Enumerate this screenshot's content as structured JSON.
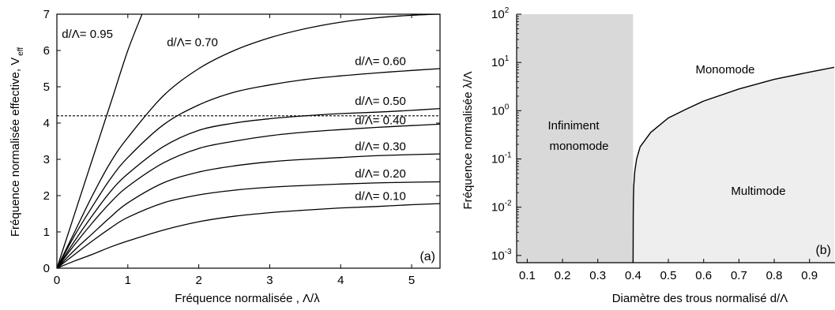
{
  "chart_data": [
    {
      "type": "line",
      "panel_label": "(a)",
      "xlabel": "Fréquence normalisée , Λ/λ",
      "ylabel_main": "Fréquence normalisée effective, V",
      "ylabel_sub": "eff",
      "xlim": [
        0,
        5.4
      ],
      "ylim": [
        0,
        7
      ],
      "xticks": [
        0,
        1,
        2,
        3,
        4,
        5
      ],
      "yticks": [
        0,
        1,
        2,
        3,
        4,
        5,
        6,
        7
      ],
      "hline": 4.2,
      "series": [
        {
          "name": "d/Λ= 0.95",
          "x": [
            0,
            0.2,
            0.4,
            0.6,
            0.8,
            1.0,
            1.2
          ],
          "y": [
            0,
            1.2,
            2.4,
            3.6,
            4.8,
            6.0,
            7.0
          ]
        },
        {
          "name": "d/Λ= 0.70",
          "x": [
            0,
            0.25,
            0.5,
            0.75,
            1.0,
            1.5,
            2.0,
            2.5,
            3.0,
            3.5,
            4.0,
            4.5,
            5.0,
            5.4
          ],
          "y": [
            0,
            1.0,
            2.0,
            2.9,
            3.6,
            4.75,
            5.5,
            6.0,
            6.35,
            6.6,
            6.78,
            6.9,
            6.97,
            7.0
          ]
        },
        {
          "name": "d/Λ= 0.60",
          "x": [
            0,
            0.25,
            0.5,
            0.75,
            1.0,
            1.5,
            2.0,
            2.5,
            3.0,
            3.5,
            4.0,
            4.5,
            5.0,
            5.4
          ],
          "y": [
            0,
            0.9,
            1.7,
            2.45,
            3.05,
            3.95,
            4.5,
            4.85,
            5.05,
            5.2,
            5.3,
            5.38,
            5.45,
            5.5
          ]
        },
        {
          "name": "d/Λ= 0.50",
          "x": [
            0,
            0.25,
            0.5,
            0.75,
            1.0,
            1.5,
            2.0,
            2.5,
            3.0,
            3.5,
            4.0,
            4.5,
            5.0,
            5.4
          ],
          "y": [
            0,
            0.75,
            1.45,
            2.1,
            2.6,
            3.35,
            3.8,
            4.0,
            4.12,
            4.2,
            4.26,
            4.3,
            4.35,
            4.4
          ]
        },
        {
          "name": "d/Λ= 0.40",
          "x": [
            0,
            0.25,
            0.5,
            0.75,
            1.0,
            1.5,
            2.0,
            2.5,
            3.0,
            3.5,
            4.0,
            4.5,
            5.0,
            5.4
          ],
          "y": [
            0,
            0.65,
            1.25,
            1.8,
            2.25,
            2.9,
            3.3,
            3.5,
            3.65,
            3.75,
            3.82,
            3.88,
            3.93,
            3.97
          ]
        },
        {
          "name": "d/Λ= 0.30",
          "x": [
            0,
            0.25,
            0.5,
            0.75,
            1.0,
            1.5,
            2.0,
            2.5,
            3.0,
            3.5,
            4.0,
            4.5,
            5.0,
            5.4
          ],
          "y": [
            0,
            0.5,
            0.95,
            1.4,
            1.8,
            2.35,
            2.65,
            2.82,
            2.93,
            3.0,
            3.05,
            3.1,
            3.13,
            3.15
          ]
        },
        {
          "name": "d/Λ= 0.20",
          "x": [
            0,
            0.25,
            0.5,
            0.75,
            1.0,
            1.5,
            2.0,
            2.5,
            3.0,
            3.5,
            4.0,
            4.5,
            5.0,
            5.4
          ],
          "y": [
            0,
            0.38,
            0.75,
            1.1,
            1.4,
            1.8,
            2.02,
            2.15,
            2.23,
            2.28,
            2.32,
            2.35,
            2.37,
            2.38
          ]
        },
        {
          "name": "d/Λ= 0.10",
          "x": [
            0,
            0.25,
            0.5,
            0.75,
            1.0,
            1.5,
            2.0,
            2.5,
            3.0,
            3.5,
            4.0,
            4.5,
            5.0,
            5.4
          ],
          "y": [
            0,
            0.2,
            0.38,
            0.58,
            0.75,
            1.05,
            1.28,
            1.43,
            1.53,
            1.6,
            1.66,
            1.7,
            1.75,
            1.78
          ]
        }
      ],
      "labels": [
        {
          "text": "d/Λ= 0.95",
          "x": 0.07,
          "y": 6.35
        },
        {
          "text": "d/Λ= 0.70",
          "x": 1.55,
          "y": 6.12
        },
        {
          "text": "d/Λ= 0.60",
          "x": 4.2,
          "y": 5.6
        },
        {
          "text": "d/Λ= 0.50",
          "x": 4.2,
          "y": 4.5
        },
        {
          "text": "d/Λ= 0.40",
          "x": 4.2,
          "y": 3.97
        },
        {
          "text": "d/Λ= 0.30",
          "x": 4.2,
          "y": 3.25
        },
        {
          "text": "d/Λ= 0.20",
          "x": 4.2,
          "y": 2.5
        },
        {
          "text": "d/Λ= 0.10",
          "x": 4.2,
          "y": 1.88
        }
      ]
    },
    {
      "type": "area",
      "panel_label": "(b)",
      "xlabel": "Diamètre des trous normalisé d/Λ",
      "ylabel": "Fréquence normalisée λ/Λ",
      "xlim": [
        0.07,
        0.97
      ],
      "ylim_log10": [
        -3.15,
        2
      ],
      "xticks": [
        0.1,
        0.2,
        0.3,
        0.4,
        0.5,
        0.6,
        0.7,
        0.8,
        0.9
      ],
      "ytick_base": "10",
      "yticks_exp": [
        -3,
        -2,
        -1,
        0,
        1,
        2
      ],
      "regions": [
        "Infiniment",
        "monomode",
        "Monomode",
        "Multimode"
      ],
      "infinite_monomode_limit": 0.4,
      "boundary": {
        "x": [
          0.4,
          0.4005,
          0.401,
          0.402,
          0.405,
          0.41,
          0.42,
          0.45,
          0.5,
          0.55,
          0.6,
          0.7,
          0.8,
          0.9,
          0.97
        ],
        "log10_y": [
          -3.15,
          -2.2,
          -1.85,
          -1.55,
          -1.25,
          -1.0,
          -0.75,
          -0.45,
          -0.15,
          0.03,
          0.2,
          0.45,
          0.65,
          0.8,
          0.9
        ]
      }
    }
  ]
}
